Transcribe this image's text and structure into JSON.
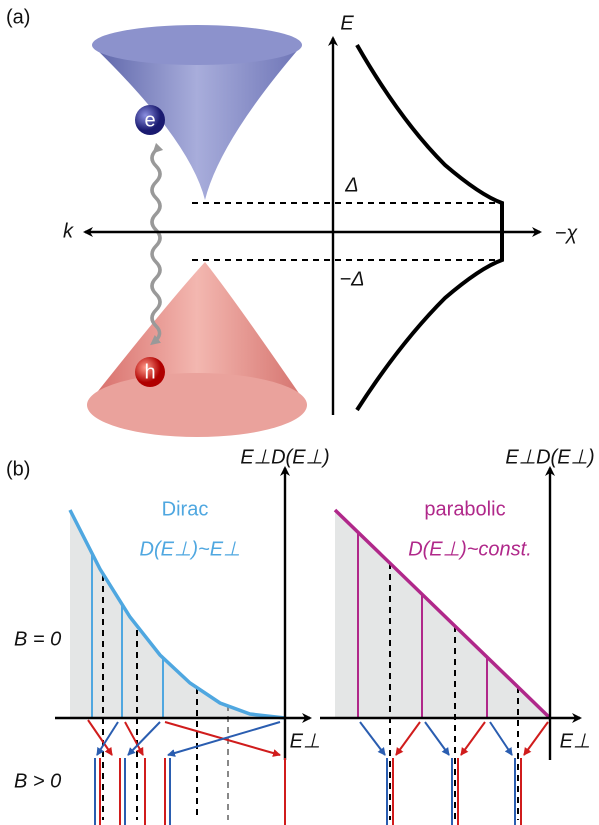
{
  "panel_a": {
    "label": "(a)",
    "energy_axis": "E",
    "momentum_axis": "k",
    "susceptibility_axis": "−χ",
    "gap_upper": "Δ",
    "gap_lower": "−Δ",
    "electron": "e",
    "hole": "h"
  },
  "panel_b": {
    "label": "(b)",
    "field_zero": "B = 0",
    "field_positive": "B > 0",
    "dirac": {
      "y_axis": "E⊥D(E⊥)",
      "x_axis": "E⊥",
      "title": "Dirac",
      "relation": "D(E⊥)~E⊥"
    },
    "parabolic": {
      "y_axis": "E⊥D(E⊥)",
      "x_axis": "E⊥",
      "title": "parabolic",
      "relation": "D(E⊥)~const."
    }
  }
}
